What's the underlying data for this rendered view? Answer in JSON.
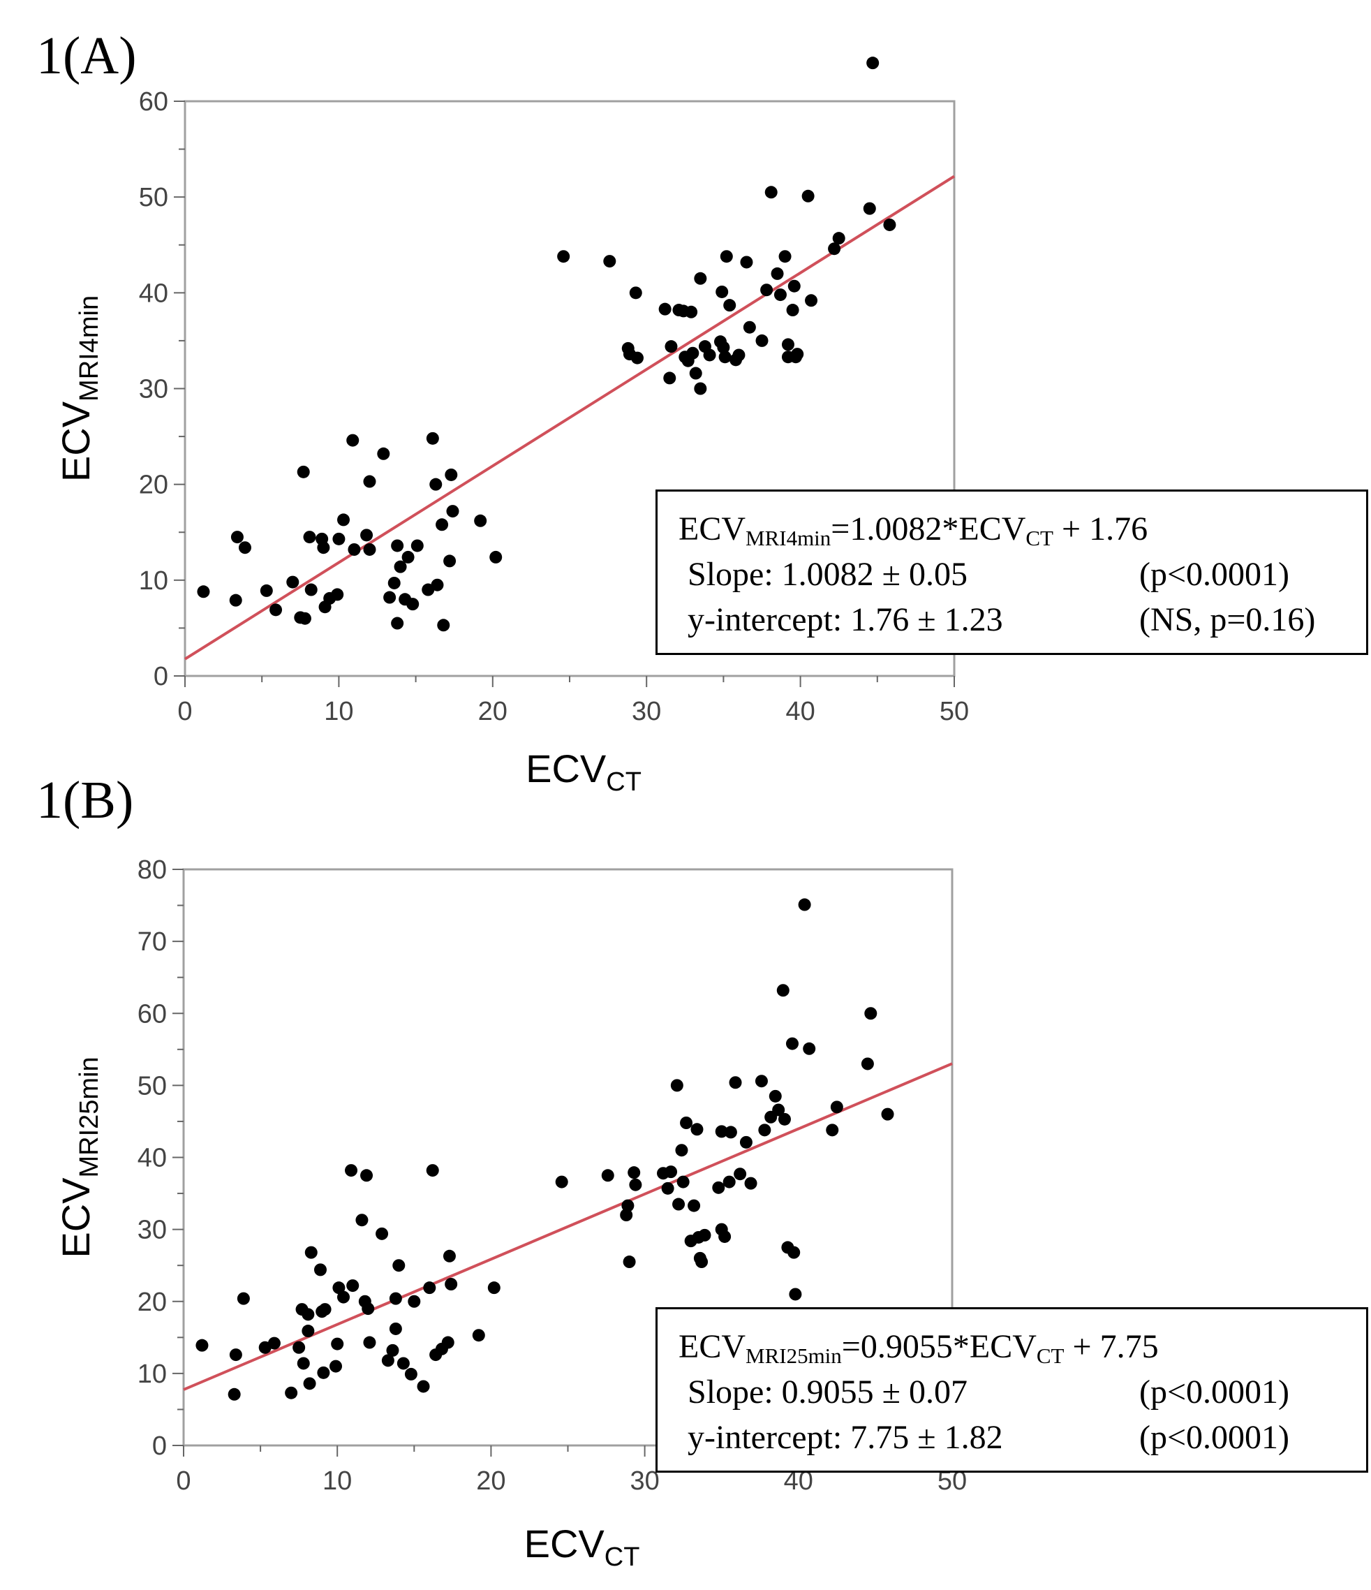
{
  "panels": [
    {
      "label": "1(A)",
      "equation": {
        "lhs": "ECV",
        "lhs_sub": "MRI4min",
        "mid": "=1.0082*ECV",
        "mid_sub": "CT",
        "rhs": " + 1.76"
      },
      "slope_text": "Slope: 1.0082 ± 0.05",
      "slope_p": "(p<0.0001)",
      "intercept_text": "y-intercept: 1.76 ± 1.23",
      "intercept_p": "(NS, p=0.16)"
    },
    {
      "label": "1(B)",
      "equation": {
        "lhs": "ECV",
        "lhs_sub": "MRI25min",
        "mid": "=0.9055*ECV",
        "mid_sub": "CT",
        "rhs": " + 7.75"
      },
      "slope_text": "Slope: 0.9055 ± 0.07",
      "slope_p": "(p<0.0001)",
      "intercept_text": "y-intercept: 7.75 ± 1.82",
      "intercept_p": "(p<0.0001)"
    }
  ],
  "colors": {
    "fit_line": "#d0505a",
    "points": "#000000",
    "frame": "#a0a0a0"
  },
  "chart_data": [
    {
      "type": "scatter",
      "title": "",
      "xlabel": "ECV",
      "xlabel_sub": "CT",
      "ylabel": "ECV",
      "ylabel_sub": "MRI4min",
      "xlim": [
        0,
        50
      ],
      "ylim": [
        0,
        60
      ],
      "xticks": [
        0,
        10,
        20,
        30,
        40,
        50
      ],
      "yticks": [
        0,
        10,
        20,
        30,
        40,
        50,
        60
      ],
      "fit": {
        "slope": 1.0082,
        "intercept": 1.76
      },
      "points": [
        [
          1.2,
          8.8
        ],
        [
          3.3,
          7.9
        ],
        [
          3.4,
          14.5
        ],
        [
          3.9,
          13.4
        ],
        [
          5.3,
          8.9
        ],
        [
          5.9,
          6.9
        ],
        [
          7.0,
          9.8
        ],
        [
          7.5,
          6.1
        ],
        [
          7.8,
          6.0
        ],
        [
          7.7,
          21.3
        ],
        [
          8.1,
          14.5
        ],
        [
          8.2,
          9.0
        ],
        [
          8.9,
          14.3
        ],
        [
          9.0,
          13.4
        ],
        [
          9.1,
          7.2
        ],
        [
          9.4,
          8.1
        ],
        [
          9.9,
          8.5
        ],
        [
          10.0,
          14.3
        ],
        [
          10.3,
          16.3
        ],
        [
          10.9,
          24.6
        ],
        [
          11.0,
          13.2
        ],
        [
          11.8,
          14.7
        ],
        [
          12.0,
          20.3
        ],
        [
          12.0,
          13.2
        ],
        [
          12.9,
          23.2
        ],
        [
          13.3,
          8.2
        ],
        [
          13.6,
          9.7
        ],
        [
          13.8,
          13.6
        ],
        [
          13.8,
          5.5
        ],
        [
          14.0,
          11.4
        ],
        [
          14.3,
          8.0
        ],
        [
          14.5,
          12.4
        ],
        [
          14.8,
          7.5
        ],
        [
          15.1,
          13.6
        ],
        [
          15.8,
          9.0
        ],
        [
          16.1,
          24.8
        ],
        [
          16.3,
          20.0
        ],
        [
          16.4,
          9.5
        ],
        [
          16.7,
          15.8
        ],
        [
          16.8,
          5.3
        ],
        [
          17.2,
          12.0
        ],
        [
          17.3,
          21.0
        ],
        [
          17.4,
          17.2
        ],
        [
          19.2,
          16.2
        ],
        [
          20.2,
          12.4
        ],
        [
          24.6,
          43.8
        ],
        [
          27.6,
          43.3
        ],
        [
          28.8,
          34.2
        ],
        [
          28.9,
          33.6
        ],
        [
          29.3,
          40.0
        ],
        [
          29.4,
          33.2
        ],
        [
          31.2,
          38.3
        ],
        [
          31.5,
          31.1
        ],
        [
          31.6,
          34.4
        ],
        [
          32.1,
          38.2
        ],
        [
          32.4,
          38.1
        ],
        [
          32.5,
          33.3
        ],
        [
          32.7,
          32.9
        ],
        [
          32.9,
          38.0
        ],
        [
          33.0,
          33.7
        ],
        [
          33.2,
          31.6
        ],
        [
          33.5,
          41.5
        ],
        [
          33.5,
          30.0
        ],
        [
          33.8,
          34.4
        ],
        [
          34.1,
          33.5
        ],
        [
          34.8,
          34.9
        ],
        [
          34.9,
          40.1
        ],
        [
          35.0,
          34.3
        ],
        [
          35.1,
          33.3
        ],
        [
          35.2,
          43.8
        ],
        [
          35.4,
          38.7
        ],
        [
          35.8,
          33.0
        ],
        [
          36.0,
          33.5
        ],
        [
          36.5,
          43.2
        ],
        [
          36.7,
          36.4
        ],
        [
          37.5,
          35.0
        ],
        [
          37.8,
          40.3
        ],
        [
          38.1,
          50.5
        ],
        [
          38.5,
          42.0
        ],
        [
          38.7,
          39.8
        ],
        [
          39.0,
          43.8
        ],
        [
          39.2,
          34.6
        ],
        [
          39.2,
          33.3
        ],
        [
          39.5,
          38.2
        ],
        [
          39.6,
          40.7
        ],
        [
          39.7,
          33.3
        ],
        [
          39.8,
          33.6
        ],
        [
          40.5,
          50.1
        ],
        [
          40.7,
          39.2
        ],
        [
          42.2,
          44.6
        ],
        [
          42.5,
          45.7
        ],
        [
          44.5,
          48.8
        ],
        [
          44.7,
          64.0
        ],
        [
          45.8,
          47.1
        ]
      ]
    },
    {
      "type": "scatter",
      "title": "",
      "xlabel": "ECV",
      "xlabel_sub": "CT",
      "ylabel": "ECV",
      "ylabel_sub": "MRI25min",
      "xlim": [
        0,
        50
      ],
      "ylim": [
        0,
        80
      ],
      "xticks": [
        0,
        10,
        20,
        30,
        40,
        50
      ],
      "yticks": [
        0,
        10,
        20,
        30,
        40,
        50,
        60,
        70,
        80
      ],
      "fit": {
        "slope": 0.9055,
        "intercept": 7.75
      },
      "points": [
        [
          1.2,
          13.9
        ],
        [
          3.3,
          7.1
        ],
        [
          3.4,
          12.6
        ],
        [
          3.9,
          20.4
        ],
        [
          5.3,
          13.6
        ],
        [
          5.9,
          14.2
        ],
        [
          7.0,
          7.3
        ],
        [
          7.5,
          13.6
        ],
        [
          7.7,
          18.9
        ],
        [
          7.8,
          11.4
        ],
        [
          8.1,
          18.2
        ],
        [
          8.2,
          8.6
        ],
        [
          8.1,
          15.9
        ],
        [
          8.3,
          26.8
        ],
        [
          8.9,
          24.4
        ],
        [
          9.0,
          18.6
        ],
        [
          9.1,
          10.1
        ],
        [
          9.2,
          18.9
        ],
        [
          9.9,
          11.0
        ],
        [
          10.0,
          14.1
        ],
        [
          10.1,
          21.9
        ],
        [
          10.4,
          20.6
        ],
        [
          10.9,
          38.2
        ],
        [
          11.0,
          22.2
        ],
        [
          11.6,
          31.3
        ],
        [
          11.8,
          20.0
        ],
        [
          11.9,
          37.5
        ],
        [
          12.0,
          19.0
        ],
        [
          12.1,
          14.3
        ],
        [
          12.9,
          29.4
        ],
        [
          13.3,
          11.8
        ],
        [
          13.6,
          13.2
        ],
        [
          13.8,
          16.2
        ],
        [
          13.8,
          20.4
        ],
        [
          14.0,
          25.0
        ],
        [
          14.3,
          11.4
        ],
        [
          14.8,
          9.9
        ],
        [
          15.0,
          20.0
        ],
        [
          15.6,
          8.2
        ],
        [
          16.0,
          21.9
        ],
        [
          16.2,
          38.2
        ],
        [
          16.4,
          12.6
        ],
        [
          16.8,
          13.4
        ],
        [
          17.2,
          14.3
        ],
        [
          17.3,
          26.3
        ],
        [
          17.4,
          22.4
        ],
        [
          19.2,
          15.3
        ],
        [
          20.2,
          21.9
        ],
        [
          24.6,
          36.6
        ],
        [
          27.6,
          37.5
        ],
        [
          28.8,
          32.0
        ],
        [
          28.9,
          33.3
        ],
        [
          29.0,
          25.5
        ],
        [
          29.3,
          37.9
        ],
        [
          29.4,
          36.2
        ],
        [
          31.2,
          37.8
        ],
        [
          31.5,
          35.7
        ],
        [
          31.7,
          38.0
        ],
        [
          32.1,
          50.0
        ],
        [
          32.2,
          33.5
        ],
        [
          32.4,
          41.0
        ],
        [
          32.5,
          36.6
        ],
        [
          32.7,
          44.8
        ],
        [
          33.0,
          28.4
        ],
        [
          33.2,
          33.3
        ],
        [
          33.4,
          43.9
        ],
        [
          33.5,
          28.9
        ],
        [
          33.6,
          26.0
        ],
        [
          33.7,
          25.5
        ],
        [
          33.9,
          29.2
        ],
        [
          34.8,
          35.8
        ],
        [
          35.0,
          43.6
        ],
        [
          35.0,
          30.0
        ],
        [
          35.2,
          29.0
        ],
        [
          35.5,
          36.6
        ],
        [
          35.6,
          43.5
        ],
        [
          35.9,
          50.4
        ],
        [
          36.2,
          37.7
        ],
        [
          36.6,
          42.1
        ],
        [
          36.9,
          36.4
        ],
        [
          37.6,
          50.6
        ],
        [
          37.8,
          43.8
        ],
        [
          38.2,
          45.6
        ],
        [
          38.5,
          48.5
        ],
        [
          38.7,
          46.6
        ],
        [
          39.0,
          63.2
        ],
        [
          39.1,
          45.3
        ],
        [
          39.3,
          27.5
        ],
        [
          39.6,
          55.8
        ],
        [
          39.7,
          26.8
        ],
        [
          39.8,
          21.0
        ],
        [
          40.4,
          75.1
        ],
        [
          40.7,
          55.1
        ],
        [
          42.2,
          43.8
        ],
        [
          42.5,
          47.0
        ],
        [
          44.5,
          53.0
        ],
        [
          44.7,
          60.0
        ],
        [
          45.8,
          46.0
        ]
      ]
    }
  ]
}
